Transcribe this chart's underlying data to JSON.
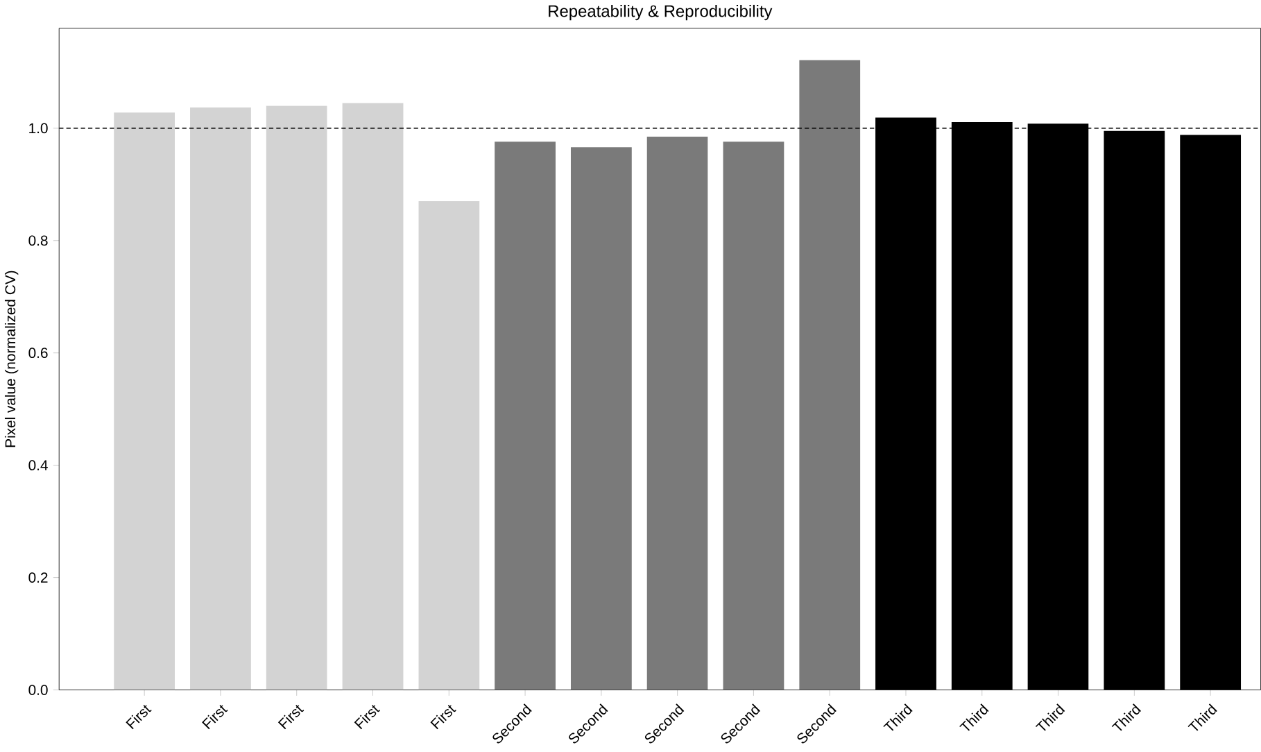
{
  "chart_data": {
    "type": "bar",
    "title": "Repeatability & Reproducibility",
    "ylabel": "Pixel value (normalized CV)",
    "categories": [
      "First",
      "First",
      "First",
      "First",
      "First",
      "Second",
      "Second",
      "Second",
      "Second",
      "Second",
      "Third",
      "Third",
      "Third",
      "Third",
      "Third"
    ],
    "values": [
      1.028,
      1.037,
      1.04,
      1.045,
      0.87,
      0.976,
      0.966,
      0.985,
      0.976,
      1.121,
      1.019,
      1.011,
      1.008,
      0.995,
      0.988
    ],
    "colors": [
      "#d3d3d3",
      "#d3d3d3",
      "#d3d3d3",
      "#d3d3d3",
      "#d3d3d3",
      "#7a7a7a",
      "#7a7a7a",
      "#7a7a7a",
      "#7a7a7a",
      "#7a7a7a",
      "#000000",
      "#000000",
      "#000000",
      "#000000",
      "#000000"
    ],
    "ylim": [
      0,
      1.178
    ],
    "yticks": [
      {
        "value": 0,
        "label": "0.0"
      },
      {
        "value": 0.2,
        "label": "0.2"
      },
      {
        "value": 0.4,
        "label": "0.4"
      },
      {
        "value": 0.6,
        "label": "0.6"
      },
      {
        "value": 0.8,
        "label": "0.8"
      },
      {
        "value": 1.0,
        "label": "1.0"
      }
    ],
    "ref_lines": [
      {
        "axis": "y",
        "value": 1.0,
        "color": "#000000",
        "line_style": "dashed"
      }
    ]
  }
}
